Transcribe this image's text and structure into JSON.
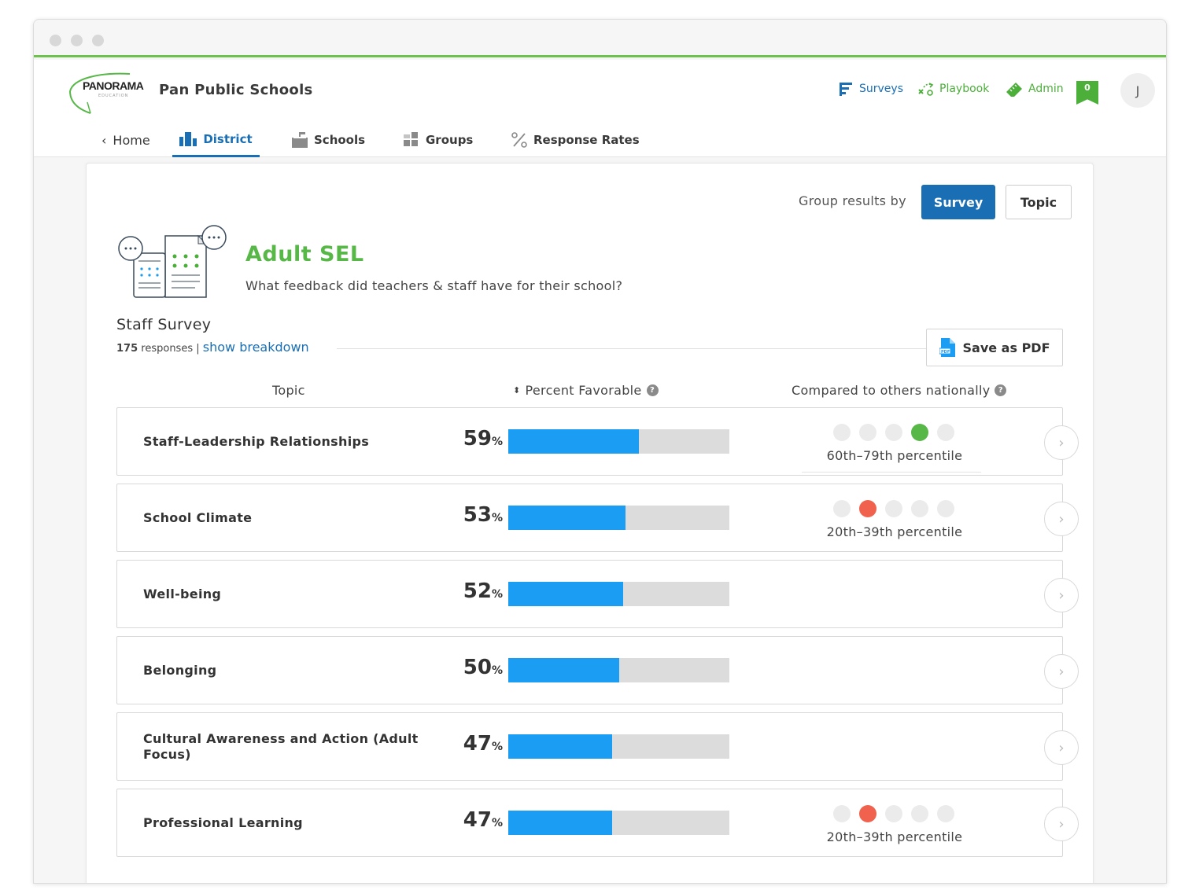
{
  "header": {
    "logo_text": "PANORAMA",
    "logo_sub": "EDUCATION",
    "district_name": "Pan Public Schools",
    "nav": {
      "surveys": "Surveys",
      "playbook": "Playbook",
      "admin": "Admin"
    },
    "notifications_count": "0",
    "avatar_initial": "J"
  },
  "tabs": {
    "home": "Home",
    "district": "District",
    "schools": "Schools",
    "groups": "Groups",
    "response_rates": "Response Rates"
  },
  "controls": {
    "group_by_label": "Group results by",
    "survey_btn": "Survey",
    "topic_btn": "Topic"
  },
  "survey": {
    "title": "Adult SEL",
    "question": "What feedback did teachers & staff have for their school?",
    "name": "Staff Survey",
    "response_count": "175",
    "responses_word": "responses",
    "breakdown_link": "show breakdown",
    "pdf_btn": "Save as PDF"
  },
  "columns": {
    "topic": "Topic",
    "percent_favorable": "Percent Favorable",
    "compared": "Compared to others nationally"
  },
  "colors": {
    "green": "#57b848",
    "orange": "#f0624d",
    "blue": "#1a9df2",
    "brand_blue": "#1a6fb4"
  },
  "rows": [
    {
      "topic": "Staff-Leadership Relationships",
      "percent": 59,
      "percent_text": "59",
      "active_dot": 3,
      "dot_color": "#57b848",
      "percentile": "60th–79th percentile"
    },
    {
      "topic": "School Climate",
      "percent": 53,
      "percent_text": "53",
      "active_dot": 1,
      "dot_color": "#f0624d",
      "percentile": "20th–39th percentile"
    },
    {
      "topic": "Well-being",
      "percent": 52,
      "percent_text": "52",
      "active_dot": null,
      "dot_color": null,
      "percentile": ""
    },
    {
      "topic": "Belonging",
      "percent": 50,
      "percent_text": "50",
      "active_dot": null,
      "dot_color": null,
      "percentile": ""
    },
    {
      "topic": "Cultural Awareness and Action (Adult Focus)",
      "percent": 47,
      "percent_text": "47",
      "active_dot": null,
      "dot_color": null,
      "percentile": ""
    },
    {
      "topic": "Professional Learning",
      "percent": 47,
      "percent_text": "47",
      "active_dot": 1,
      "dot_color": "#f0624d",
      "percentile": "20th–39th percentile"
    }
  ]
}
